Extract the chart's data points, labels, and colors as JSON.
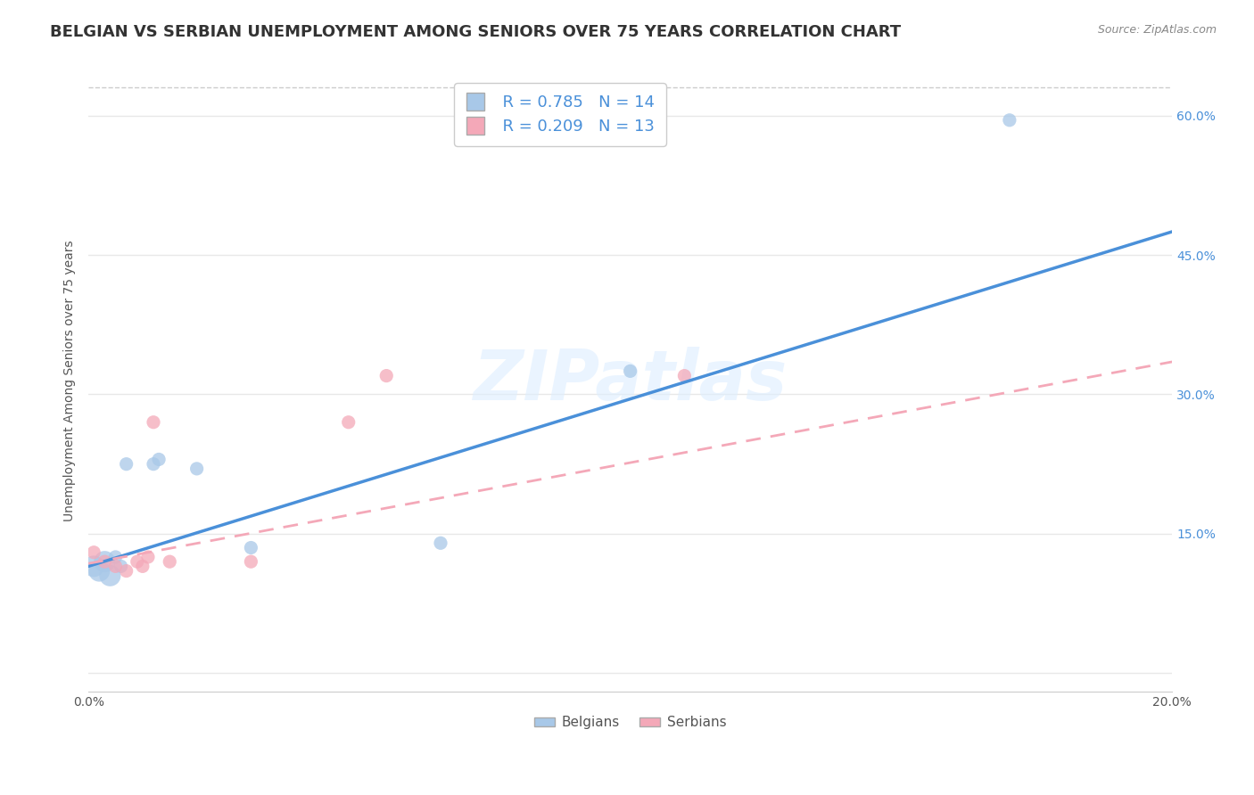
{
  "title": "BELGIAN VS SERBIAN UNEMPLOYMENT AMONG SENIORS OVER 75 YEARS CORRELATION CHART",
  "source": "Source: ZipAtlas.com",
  "ylabel": "Unemployment Among Seniors over 75 years",
  "xlim": [
    0.0,
    0.2
  ],
  "ylim": [
    -0.02,
    0.65
  ],
  "xticks": [
    0.0,
    0.05,
    0.1,
    0.15,
    0.2
  ],
  "xtick_labels": [
    "0.0%",
    "",
    "",
    "",
    "20.0%"
  ],
  "ytick_positions": [
    0.0,
    0.15,
    0.3,
    0.45,
    0.6
  ],
  "ytick_labels": [
    "",
    "15.0%",
    "30.0%",
    "45.0%",
    "60.0%"
  ],
  "belgian_color": "#a8c8e8",
  "serbian_color": "#f4a8b8",
  "belgian_line_color": "#4a90d9",
  "serbian_line_color": "#f4a8b8",
  "R_belgian": 0.785,
  "N_belgian": 14,
  "R_serbian": 0.209,
  "N_serbian": 13,
  "belgians_x": [
    0.001,
    0.002,
    0.003,
    0.004,
    0.005,
    0.006,
    0.007,
    0.012,
    0.013,
    0.02,
    0.03,
    0.065,
    0.1,
    0.17
  ],
  "belgians_y": [
    0.115,
    0.11,
    0.12,
    0.105,
    0.125,
    0.115,
    0.225,
    0.225,
    0.23,
    0.22,
    0.135,
    0.14,
    0.325,
    0.595
  ],
  "belgians_sizes": [
    300,
    300,
    300,
    300,
    120,
    120,
    120,
    120,
    120,
    120,
    120,
    120,
    120,
    120
  ],
  "serbians_x": [
    0.001,
    0.003,
    0.005,
    0.007,
    0.009,
    0.01,
    0.011,
    0.012,
    0.015,
    0.03,
    0.048,
    0.055,
    0.11
  ],
  "serbians_y": [
    0.13,
    0.12,
    0.115,
    0.11,
    0.12,
    0.115,
    0.125,
    0.27,
    0.12,
    0.12,
    0.27,
    0.32,
    0.32
  ],
  "serbians_sizes": [
    120,
    120,
    120,
    120,
    120,
    120,
    120,
    120,
    120,
    120,
    120,
    120,
    120
  ],
  "bline_x0": 0.0,
  "bline_y0": 0.115,
  "bline_x1": 0.2,
  "bline_y1": 0.475,
  "sline_x0": 0.0,
  "sline_y0": 0.118,
  "sline_x1": 0.2,
  "sline_y1": 0.335,
  "background_color": "#ffffff",
  "grid_color": "#e8e8e8",
  "title_fontsize": 13,
  "axis_label_fontsize": 10,
  "tick_fontsize": 10,
  "legend_fontsize": 13
}
